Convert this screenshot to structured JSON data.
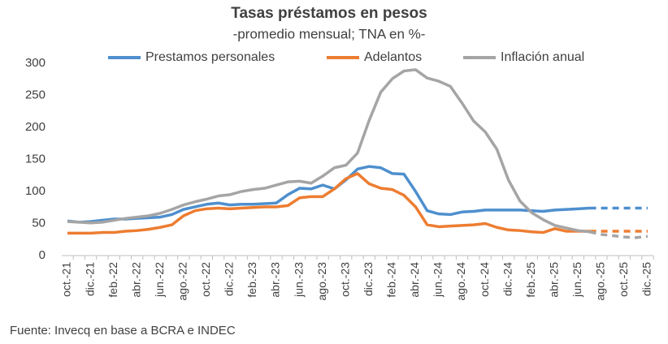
{
  "chart_data": {
    "type": "line",
    "title": "Tasas préstamos en pesos",
    "subtitle": "-promedio mensual; TNA en %-",
    "source": "Fuente: Invecq en base a BCRA e INDEC",
    "categories": [
      "oct.-21",
      null,
      "dic.-21",
      null,
      "feb.-22",
      null,
      "abr.-22",
      null,
      "jun.-22",
      null,
      "ago.-22",
      null,
      "oct.-22",
      null,
      "dic.-22",
      null,
      "feb.-23",
      null,
      "abr.-23",
      null,
      "jun.-23",
      null,
      "ago.-23",
      null,
      "oct.-23",
      null,
      "dic.-23",
      null,
      "feb.-24",
      null,
      "abr.-24",
      null,
      "jun.-24",
      null,
      "ago.-24",
      null,
      "oct.-24",
      null,
      "dic.-24",
      null,
      "feb.-25",
      null,
      "abr.-25",
      null,
      "jun.-25",
      null,
      "ago.-25",
      null,
      "oct.-25",
      null,
      "dic.-25"
    ],
    "ylim": [
      0,
      300
    ],
    "yticks": [
      0,
      50,
      100,
      150,
      200,
      250,
      300
    ],
    "grid": false,
    "legend": "top",
    "series": [
      {
        "name": "Prestamos personales",
        "color": "#4e8fce",
        "values": [
          54,
          52,
          53,
          55,
          57,
          57,
          58,
          59,
          60,
          64,
          72,
          76,
          80,
          82,
          79,
          80,
          80,
          81,
          82,
          95,
          105,
          104,
          110,
          104,
          118,
          135,
          139,
          137,
          128,
          127,
          100,
          70,
          65,
          64,
          68,
          69,
          71,
          71,
          71,
          71,
          70,
          69,
          71,
          72,
          73,
          74,
          null,
          null,
          null,
          null,
          null
        ],
        "projected_values": [
          null,
          null,
          null,
          null,
          null,
          null,
          null,
          null,
          null,
          null,
          null,
          null,
          null,
          null,
          null,
          null,
          null,
          null,
          null,
          null,
          null,
          null,
          null,
          null,
          null,
          null,
          null,
          null,
          null,
          null,
          null,
          null,
          null,
          null,
          null,
          null,
          null,
          null,
          null,
          null,
          null,
          null,
          null,
          null,
          null,
          74,
          74,
          74,
          74,
          74,
          74
        ]
      },
      {
        "name": "Adelantos",
        "color": "#ed7d31",
        "values": [
          35,
          35,
          35,
          36,
          36,
          38,
          39,
          41,
          44,
          48,
          62,
          70,
          73,
          74,
          73,
          74,
          75,
          76,
          76,
          78,
          90,
          92,
          92,
          104,
          120,
          128,
          112,
          105,
          103,
          94,
          76,
          48,
          45,
          46,
          47,
          48,
          50,
          44,
          40,
          39,
          37,
          36,
          42,
          38,
          38,
          38,
          null,
          null,
          null,
          null,
          null
        ],
        "projected_values": [
          null,
          null,
          null,
          null,
          null,
          null,
          null,
          null,
          null,
          null,
          null,
          null,
          null,
          null,
          null,
          null,
          null,
          null,
          null,
          null,
          null,
          null,
          null,
          null,
          null,
          null,
          null,
          null,
          null,
          null,
          null,
          null,
          null,
          null,
          null,
          null,
          null,
          null,
          null,
          null,
          null,
          null,
          null,
          null,
          null,
          38,
          38,
          38,
          38,
          38,
          38
        ]
      },
      {
        "name": "Inflación anual",
        "color": "#a5a5a5",
        "values": [
          53,
          52,
          51,
          52,
          55,
          58,
          60,
          62,
          66,
          72,
          79,
          84,
          88,
          93,
          95,
          100,
          103,
          105,
          110,
          115,
          116,
          113,
          124,
          137,
          141,
          160,
          211,
          255,
          276,
          288,
          290,
          277,
          272,
          264,
          238,
          210,
          193,
          166,
          118,
          85,
          67,
          56,
          47,
          43,
          39,
          37,
          null,
          null,
          null,
          null,
          null
        ],
        "projected_values": [
          null,
          null,
          null,
          null,
          null,
          null,
          null,
          null,
          null,
          null,
          null,
          null,
          null,
          null,
          null,
          null,
          null,
          null,
          null,
          null,
          null,
          null,
          null,
          null,
          null,
          null,
          null,
          null,
          null,
          null,
          null,
          null,
          null,
          null,
          null,
          null,
          null,
          null,
          null,
          null,
          null,
          null,
          null,
          null,
          null,
          37,
          33,
          31,
          29,
          28,
          30
        ]
      }
    ]
  }
}
